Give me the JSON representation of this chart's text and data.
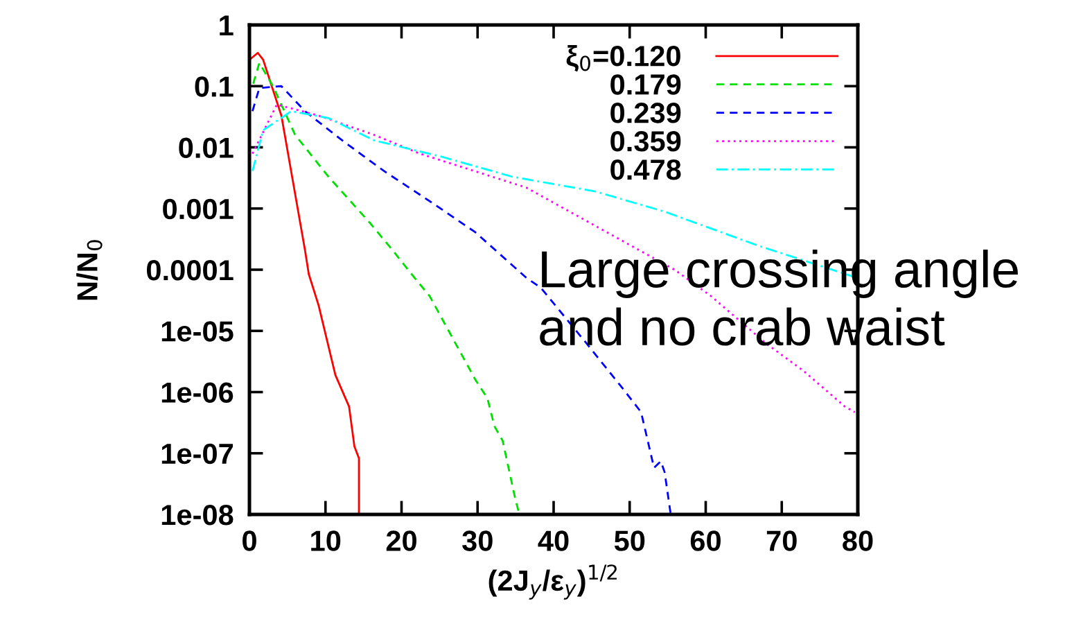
{
  "chart_data": {
    "type": "line",
    "xlabel": "(2J$_{y}$/ε$_{y}$)$^{1/2}$",
    "ylabel": "N/N$_{0}$",
    "xlim": [
      0,
      80
    ],
    "xticks": [
      0,
      10,
      20,
      30,
      40,
      50,
      60,
      70,
      80
    ],
    "ylim": [
      1e-08,
      1
    ],
    "log": "y",
    "yticks": [
      {
        "value": 1,
        "label": "1"
      },
      {
        "value": 0.1,
        "label": "0.1"
      },
      {
        "value": 0.01,
        "label": "0.01"
      },
      {
        "value": 0.001,
        "label": "0.001"
      },
      {
        "value": 0.0001,
        "label": "0.0001"
      },
      {
        "value": 1e-05,
        "label": "1e-05"
      },
      {
        "value": 1e-06,
        "label": "1e-06"
      },
      {
        "value": 1e-07,
        "label": "1e-07"
      },
      {
        "value": 1e-08,
        "label": "1e-08"
      }
    ],
    "grid": false,
    "legend": "top right",
    "annotations": [
      "Large crossing angle\nand no crab waist"
    ],
    "series": [
      {
        "name": "ξ$_{0}$=0.120",
        "color": "#ff0000",
        "line_style": "solid",
        "x": [
          0,
          1.1,
          1.8,
          4.2,
          7.3,
          7.8,
          9.1,
          11.3,
          13.1,
          13.8,
          14.4,
          14.4
        ],
        "values": [
          0.27,
          0.35,
          0.27,
          0.033,
          0.00021,
          8.5e-05,
          2.6e-05,
          1.9e-06,
          5.8e-07,
          1.3e-07,
          8.3e-08,
          1e-08
        ]
      },
      {
        "name": "0.179",
        "color": "#00e000",
        "line_style": "dashed",
        "x": [
          0.5,
          1.3,
          3.1,
          6.0,
          10.4,
          15.8,
          18.8,
          21.3,
          23.7,
          29.7,
          31.3,
          32.2,
          33.3,
          35.0,
          35.5
        ],
        "values": [
          0.11,
          0.24,
          0.1,
          0.016,
          0.0033,
          0.00059,
          0.00021,
          8.5e-05,
          3.7e-05,
          1.6e-06,
          7.9e-07,
          2.8e-07,
          1.6e-07,
          1.7e-08,
          1e-08
        ]
      },
      {
        "name": "0.239",
        "color": "#0000ff",
        "line_style": "dashed",
        "x": [
          0.4,
          1.3,
          4.2,
          7.3,
          12.2,
          17.7,
          24.2,
          29.7,
          36.4,
          38.3,
          44.3,
          49.2,
          51.5,
          53.2,
          54.1,
          54.6,
          55.4
        ],
        "values": [
          0.039,
          0.093,
          0.1,
          0.039,
          0.013,
          0.0041,
          0.0012,
          0.00041,
          7.4e-05,
          5.1e-05,
          6.3e-06,
          1.1e-06,
          4.7e-07,
          5.8e-08,
          7.4e-08,
          4.9e-08,
          1e-08
        ]
      },
      {
        "name": "0.359",
        "color": "#ff00ff",
        "line_style": "dotted",
        "x": [
          0.4,
          3.6,
          9.1,
          16.4,
          22.4,
          36.4,
          55.9,
          60.7,
          67.9,
          72.9,
          78.3,
          79.6
        ],
        "values": [
          0.0079,
          0.05,
          0.033,
          0.016,
          0.0079,
          0.0022,
          0.0001,
          3.7e-05,
          6.3e-06,
          2.2e-06,
          5.8e-07,
          4.7e-07
        ]
      },
      {
        "name": "0.478",
        "color": "#00ffff",
        "line_style": "dashdot",
        "x": [
          0.4,
          1.8,
          5.5,
          10.4,
          16.4,
          25.5,
          34.6,
          45.5,
          54.6,
          66.8,
          78.9,
          80
        ],
        "values": [
          0.0041,
          0.019,
          0.039,
          0.03,
          0.013,
          0.0069,
          0.0033,
          0.0019,
          0.00089,
          0.00025,
          8.1e-05,
          7.2e-05
        ]
      }
    ]
  }
}
